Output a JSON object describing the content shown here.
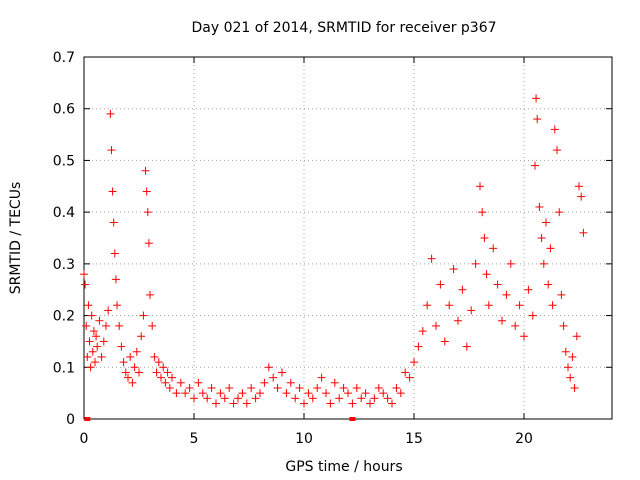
{
  "chart_data": {
    "type": "scatter",
    "title": "Day 021 of 2014, SRMTID for receiver p367",
    "xlabel": "GPS time / hours",
    "ylabel": "SRMTID / TECUs",
    "xlim": [
      0,
      24
    ],
    "ylim": [
      0,
      0.7
    ],
    "xticks": [
      0,
      5,
      10,
      15,
      20
    ],
    "yticks": [
      0,
      0.1,
      0.2,
      0.3,
      0.4,
      0.5,
      0.6,
      0.7
    ],
    "ytick_labels": [
      "0",
      "0.1",
      "0.2",
      "0.3",
      "0.4",
      "0.5",
      "0.6",
      "0.7"
    ],
    "grid": true,
    "marker": "+",
    "color": "#ff0000",
    "series": [
      {
        "name": "SRMTID",
        "x": [
          0.0,
          0.05,
          0.1,
          0.15,
          0.2,
          0.25,
          0.3,
          0.35,
          0.4,
          0.45,
          0.5,
          0.55,
          0.6,
          0.7,
          0.8,
          0.9,
          1.0,
          1.1,
          1.2,
          1.25,
          1.3,
          1.35,
          1.4,
          1.45,
          1.5,
          1.6,
          1.7,
          1.8,
          1.9,
          2.0,
          2.1,
          2.2,
          2.3,
          2.4,
          2.5,
          2.6,
          2.7,
          2.8,
          2.85,
          2.9,
          2.95,
          3.0,
          3.1,
          3.2,
          3.3,
          3.4,
          3.5,
          3.6,
          3.7,
          3.8,
          3.9,
          4.0,
          4.2,
          4.4,
          4.6,
          4.8,
          5.0,
          5.2,
          5.4,
          5.6,
          5.8,
          6.0,
          6.2,
          6.4,
          6.6,
          6.8,
          7.0,
          7.2,
          7.4,
          7.6,
          7.8,
          8.0,
          8.2,
          8.4,
          8.6,
          8.8,
          9.0,
          9.2,
          9.4,
          9.6,
          9.8,
          10.0,
          10.2,
          10.4,
          10.6,
          10.8,
          11.0,
          11.2,
          11.4,
          11.6,
          11.8,
          12.0,
          12.2,
          12.4,
          12.6,
          12.8,
          13.0,
          13.2,
          13.4,
          13.6,
          13.8,
          14.0,
          14.2,
          14.4,
          14.6,
          14.8,
          15.0,
          15.2,
          15.4,
          15.6,
          15.8,
          16.0,
          16.2,
          16.4,
          16.6,
          16.8,
          17.0,
          17.2,
          17.4,
          17.6,
          17.8,
          18.0,
          18.1,
          18.2,
          18.3,
          18.4,
          18.6,
          18.8,
          19.0,
          19.2,
          19.4,
          19.6,
          19.8,
          20.0,
          20.2,
          20.4,
          20.5,
          20.55,
          20.6,
          20.7,
          20.8,
          20.9,
          21.0,
          21.1,
          21.2,
          21.3,
          21.4,
          21.5,
          21.6,
          21.7,
          21.8,
          21.9,
          22.0,
          22.1,
          22.2,
          22.3,
          22.4,
          22.5,
          22.6,
          22.7
        ],
        "y": [
          0.28,
          0.26,
          0.18,
          0.12,
          0.22,
          0.15,
          0.1,
          0.2,
          0.13,
          0.17,
          0.11,
          0.16,
          0.14,
          0.19,
          0.12,
          0.15,
          0.18,
          0.21,
          0.59,
          0.52,
          0.44,
          0.38,
          0.32,
          0.27,
          0.22,
          0.18,
          0.14,
          0.11,
          0.09,
          0.08,
          0.12,
          0.07,
          0.1,
          0.13,
          0.09,
          0.16,
          0.2,
          0.48,
          0.44,
          0.4,
          0.34,
          0.24,
          0.18,
          0.12,
          0.09,
          0.11,
          0.08,
          0.1,
          0.07,
          0.09,
          0.06,
          0.08,
          0.05,
          0.07,
          0.05,
          0.06,
          0.04,
          0.07,
          0.05,
          0.04,
          0.06,
          0.03,
          0.05,
          0.04,
          0.06,
          0.03,
          0.04,
          0.05,
          0.03,
          0.06,
          0.04,
          0.05,
          0.07,
          0.1,
          0.08,
          0.06,
          0.09,
          0.05,
          0.07,
          0.04,
          0.06,
          0.03,
          0.05,
          0.04,
          0.06,
          0.08,
          0.05,
          0.03,
          0.07,
          0.04,
          0.06,
          0.05,
          0.03,
          0.06,
          0.04,
          0.05,
          0.03,
          0.04,
          0.06,
          0.05,
          0.04,
          0.03,
          0.06,
          0.05,
          0.09,
          0.08,
          0.11,
          0.14,
          0.17,
          0.22,
          0.31,
          0.18,
          0.26,
          0.15,
          0.22,
          0.29,
          0.19,
          0.25,
          0.14,
          0.21,
          0.3,
          0.45,
          0.4,
          0.35,
          0.28,
          0.22,
          0.33,
          0.26,
          0.19,
          0.24,
          0.3,
          0.18,
          0.22,
          0.16,
          0.25,
          0.2,
          0.49,
          0.62,
          0.58,
          0.41,
          0.35,
          0.3,
          0.38,
          0.26,
          0.33,
          0.22,
          0.56,
          0.52,
          0.4,
          0.24,
          0.18,
          0.13,
          0.1,
          0.08,
          0.12,
          0.06,
          0.16,
          0.45,
          0.43,
          0.36
        ]
      }
    ],
    "extra_marks": [
      {
        "x": 0.15,
        "y": 0.0
      },
      {
        "x": 12.2,
        "y": 0.0
      }
    ]
  }
}
